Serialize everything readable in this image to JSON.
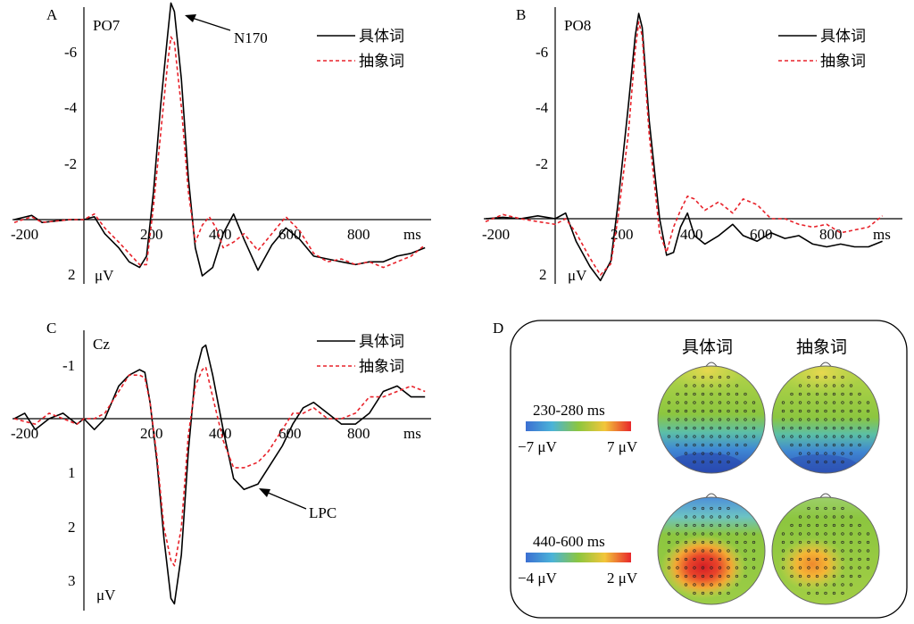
{
  "colors": {
    "concrete": "#000000",
    "abstract": "#e8222a",
    "axis": "#000000"
  },
  "chart_data": [
    {
      "type": "line",
      "panel_label": "A",
      "channel": "PO7",
      "x_tick_labels": [
        "-200",
        "200",
        "400",
        "600",
        "800"
      ],
      "x_unit": "ms",
      "y_tick_labels": [
        "-6",
        "-4",
        "-2",
        "2"
      ],
      "y_unit": "μV",
      "annotation": "N170",
      "legend": [
        "具体词",
        "抽象词"
      ],
      "y_inverted": true,
      "series": [
        {
          "name": "具体词",
          "style": "solid",
          "points": [
            [
              -200,
              0
            ],
            [
              -150,
              -0.15
            ],
            [
              -120,
              0.1
            ],
            [
              -80,
              0.05
            ],
            [
              -40,
              0
            ],
            [
              0,
              0
            ],
            [
              30,
              -0.1
            ],
            [
              60,
              0.5
            ],
            [
              100,
              1
            ],
            [
              130,
              1.5
            ],
            [
              160,
              1.7
            ],
            [
              180,
              1.3
            ],
            [
              200,
              -1
            ],
            [
              220,
              -4
            ],
            [
              240,
              -6.5
            ],
            [
              250,
              -7.7
            ],
            [
              260,
              -7.4
            ],
            [
              280,
              -5
            ],
            [
              300,
              -1.5
            ],
            [
              320,
              1
            ],
            [
              340,
              2
            ],
            [
              370,
              1.7
            ],
            [
              400,
              0.5
            ],
            [
              430,
              -0.2
            ],
            [
              460,
              0.7
            ],
            [
              500,
              1.8
            ],
            [
              540,
              0.9
            ],
            [
              580,
              0.3
            ],
            [
              620,
              0.7
            ],
            [
              660,
              1.3
            ],
            [
              700,
              1.4
            ],
            [
              740,
              1.5
            ],
            [
              780,
              1.6
            ],
            [
              820,
              1.5
            ],
            [
              860,
              1.5
            ],
            [
              900,
              1.3
            ],
            [
              940,
              1.2
            ],
            [
              980,
              1.0
            ]
          ]
        },
        {
          "name": "抽象词",
          "style": "dashed",
          "points": [
            [
              -200,
              0.1
            ],
            [
              -150,
              -0.1
            ],
            [
              -120,
              0.1
            ],
            [
              -80,
              0.05
            ],
            [
              -40,
              0
            ],
            [
              0,
              0
            ],
            [
              30,
              -0.2
            ],
            [
              60,
              0.3
            ],
            [
              100,
              0.8
            ],
            [
              130,
              1.2
            ],
            [
              160,
              1.6
            ],
            [
              180,
              1.6
            ],
            [
              200,
              -0.5
            ],
            [
              220,
              -3
            ],
            [
              240,
              -5.5
            ],
            [
              250,
              -6.5
            ],
            [
              260,
              -6.3
            ],
            [
              280,
              -4
            ],
            [
              300,
              -1
            ],
            [
              320,
              0.8
            ],
            [
              340,
              0.2
            ],
            [
              360,
              -0.1
            ],
            [
              380,
              0.3
            ],
            [
              400,
              1
            ],
            [
              430,
              0.8
            ],
            [
              460,
              0.5
            ],
            [
              500,
              1.1
            ],
            [
              540,
              0.5
            ],
            [
              580,
              -0.1
            ],
            [
              620,
              0.4
            ],
            [
              660,
              1.2
            ],
            [
              700,
              1.5
            ],
            [
              740,
              1.4
            ],
            [
              780,
              1.6
            ],
            [
              820,
              1.5
            ],
            [
              860,
              1.7
            ],
            [
              900,
              1.5
            ],
            [
              940,
              1.3
            ],
            [
              980,
              0.9
            ]
          ]
        }
      ]
    },
    {
      "type": "line",
      "panel_label": "B",
      "channel": "PO8",
      "x_tick_labels": [
        "-200",
        "200",
        "400",
        "600",
        "800"
      ],
      "x_unit": "ms",
      "y_tick_labels": [
        "-6",
        "-4",
        "-2",
        "2"
      ],
      "y_unit": "μV",
      "legend": [
        "具体词",
        "抽象词"
      ],
      "y_inverted": true,
      "series": [
        {
          "name": "具体词",
          "style": "solid",
          "points": [
            [
              -200,
              0
            ],
            [
              -150,
              -0.05
            ],
            [
              -100,
              0
            ],
            [
              -50,
              -0.1
            ],
            [
              0,
              0
            ],
            [
              30,
              -0.2
            ],
            [
              60,
              0.8
            ],
            [
              100,
              1.7
            ],
            [
              130,
              2.2
            ],
            [
              160,
              1.5
            ],
            [
              180,
              -0.5
            ],
            [
              210,
              -4
            ],
            [
              230,
              -6.5
            ],
            [
              240,
              -7.3
            ],
            [
              250,
              -6.8
            ],
            [
              270,
              -3.5
            ],
            [
              300,
              0
            ],
            [
              320,
              1.3
            ],
            [
              340,
              1.2
            ],
            [
              360,
              0.3
            ],
            [
              380,
              -0.2
            ],
            [
              400,
              0.6
            ],
            [
              430,
              0.9
            ],
            [
              470,
              0.6
            ],
            [
              510,
              0.2
            ],
            [
              540,
              0.6
            ],
            [
              580,
              0.8
            ],
            [
              620,
              0.5
            ],
            [
              660,
              0.7
            ],
            [
              700,
              0.6
            ],
            [
              740,
              0.9
            ],
            [
              780,
              1.0
            ],
            [
              820,
              0.9
            ],
            [
              860,
              1.0
            ],
            [
              900,
              1.0
            ],
            [
              940,
              0.8
            ]
          ]
        },
        {
          "name": "抽象词",
          "style": "dashed",
          "points": [
            [
              -200,
              0.1
            ],
            [
              -150,
              -0.15
            ],
            [
              -100,
              0
            ],
            [
              -50,
              0.1
            ],
            [
              0,
              0.2
            ],
            [
              30,
              0
            ],
            [
              60,
              0.5
            ],
            [
              100,
              1.4
            ],
            [
              130,
              2.0
            ],
            [
              160,
              1.6
            ],
            [
              180,
              0
            ],
            [
              210,
              -3
            ],
            [
              230,
              -6
            ],
            [
              240,
              -7.0
            ],
            [
              250,
              -6.5
            ],
            [
              270,
              -3
            ],
            [
              300,
              0.5
            ],
            [
              320,
              1.2
            ],
            [
              340,
              0.3
            ],
            [
              360,
              -0.3
            ],
            [
              380,
              -0.8
            ],
            [
              400,
              -0.7
            ],
            [
              430,
              -0.3
            ],
            [
              470,
              -0.6
            ],
            [
              510,
              -0.2
            ],
            [
              540,
              -0.7
            ],
            [
              580,
              -0.5
            ],
            [
              620,
              0
            ],
            [
              660,
              0
            ],
            [
              700,
              0.2
            ],
            [
              740,
              0.3
            ],
            [
              780,
              0.2
            ],
            [
              820,
              0.5
            ],
            [
              860,
              0.4
            ],
            [
              900,
              0.3
            ],
            [
              940,
              -0.1
            ]
          ]
        }
      ]
    },
    {
      "type": "line",
      "panel_label": "C",
      "channel": "Cz",
      "x_tick_labels": [
        "-200",
        "200",
        "400",
        "600",
        "800"
      ],
      "x_unit": "ms",
      "y_tick_labels": [
        "-1",
        "1",
        "2",
        "3"
      ],
      "y_unit": "μV",
      "annotation": "LPC",
      "legend": [
        "具体词",
        "抽象词"
      ],
      "y_inverted": true,
      "series": [
        {
          "name": "具体词",
          "style": "solid",
          "points": [
            [
              -200,
              0
            ],
            [
              -170,
              -0.1
            ],
            [
              -140,
              0.2
            ],
            [
              -100,
              0
            ],
            [
              -60,
              -0.1
            ],
            [
              -20,
              0.1
            ],
            [
              0,
              0
            ],
            [
              30,
              0.2
            ],
            [
              60,
              0
            ],
            [
              100,
              -0.6
            ],
            [
              130,
              -0.8
            ],
            [
              160,
              -0.9
            ],
            [
              175,
              -0.85
            ],
            [
              190,
              -0.3
            ],
            [
              210,
              0.8
            ],
            [
              230,
              2.2
            ],
            [
              250,
              3.3
            ],
            [
              260,
              3.4
            ],
            [
              280,
              2.5
            ],
            [
              300,
              0.6
            ],
            [
              320,
              -0.8
            ],
            [
              340,
              -1.3
            ],
            [
              350,
              -1.35
            ],
            [
              370,
              -0.8
            ],
            [
              400,
              0.2
            ],
            [
              430,
              1.1
            ],
            [
              460,
              1.3
            ],
            [
              500,
              1.2
            ],
            [
              530,
              0.9
            ],
            [
              570,
              0.5
            ],
            [
              600,
              0.1
            ],
            [
              630,
              -0.2
            ],
            [
              660,
              -0.3
            ],
            [
              700,
              -0.1
            ],
            [
              740,
              0.1
            ],
            [
              780,
              0.1
            ],
            [
              820,
              -0.1
            ],
            [
              860,
              -0.5
            ],
            [
              900,
              -0.6
            ],
            [
              940,
              -0.4
            ],
            [
              980,
              -0.4
            ]
          ]
        },
        {
          "name": "抽象词",
          "style": "dashed",
          "points": [
            [
              -200,
              0
            ],
            [
              -170,
              0.05
            ],
            [
              -140,
              0.1
            ],
            [
              -100,
              -0.1
            ],
            [
              -60,
              0
            ],
            [
              -20,
              0.1
            ],
            [
              0,
              0
            ],
            [
              30,
              0
            ],
            [
              60,
              -0.1
            ],
            [
              100,
              -0.5
            ],
            [
              130,
              -0.8
            ],
            [
              160,
              -0.8
            ],
            [
              175,
              -0.75
            ],
            [
              190,
              -0.3
            ],
            [
              210,
              0.7
            ],
            [
              230,
              2.0
            ],
            [
              250,
              2.6
            ],
            [
              260,
              2.7
            ],
            [
              280,
              2.0
            ],
            [
              300,
              0.3
            ],
            [
              320,
              -0.6
            ],
            [
              340,
              -0.9
            ],
            [
              350,
              -0.95
            ],
            [
              370,
              -0.4
            ],
            [
              400,
              0.4
            ],
            [
              430,
              0.9
            ],
            [
              460,
              0.9
            ],
            [
              500,
              0.8
            ],
            [
              530,
              0.6
            ],
            [
              570,
              0.2
            ],
            [
              600,
              -0.1
            ],
            [
              630,
              -0.1
            ],
            [
              660,
              -0.2
            ],
            [
              700,
              0
            ],
            [
              740,
              0
            ],
            [
              780,
              -0.1
            ],
            [
              820,
              -0.4
            ],
            [
              860,
              -0.4
            ],
            [
              900,
              -0.5
            ],
            [
              940,
              -0.6
            ],
            [
              980,
              -0.5
            ]
          ]
        }
      ]
    }
  ],
  "panel_d": {
    "label": "D",
    "col_labels": [
      "具体词",
      "抽象词"
    ],
    "rows": [
      {
        "window": "230-280 ms",
        "min_label": "−7 μV",
        "max_label": "7 μV",
        "maps": [
          "concrete-early",
          "abstract-early"
        ]
      },
      {
        "window": "440-600 ms",
        "min_label": "−4 μV",
        "max_label": "2 μV",
        "maps": [
          "concrete-late",
          "abstract-late"
        ]
      }
    ]
  }
}
